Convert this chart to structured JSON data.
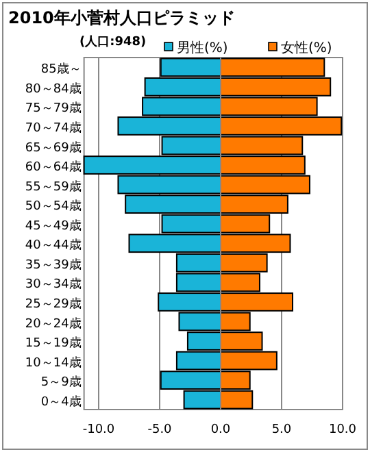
{
  "chart_data": {
    "type": "bar",
    "orientation": "horizontal",
    "title": "2010年小菅村人口ピラミッド",
    "subtitle": "(人口:948)",
    "categories": [
      "85歳～",
      "80～84歳",
      "75～79歳",
      "70～74歳",
      "65～69歳",
      "60～64歳",
      "55～59歳",
      "50～54歳",
      "45～49歳",
      "40～44歳",
      "35～39歳",
      "30～34歳",
      "25～29歳",
      "20～24歳",
      "15～19歳",
      "10～14歳",
      "5～9歳",
      "0～4歳"
    ],
    "series": [
      {
        "name": "男性(%)",
        "color": "#1ab4d8",
        "values": [
          -4.9,
          -6.2,
          -6.4,
          -8.4,
          -4.8,
          -11.2,
          -8.4,
          -7.8,
          -4.8,
          -7.5,
          -3.6,
          -3.6,
          -5.1,
          -3.4,
          -2.7,
          -3.6,
          -4.9,
          -3.0
        ]
      },
      {
        "name": "女性(%)",
        "color": "#ff7a00",
        "values": [
          8.5,
          9.0,
          7.9,
          9.9,
          6.7,
          6.9,
          7.3,
          5.5,
          4.0,
          5.7,
          3.8,
          3.2,
          5.9,
          2.4,
          3.4,
          4.6,
          2.4,
          2.6
        ]
      }
    ],
    "xlim": [
      -11.2,
      10
    ],
    "stacked": true,
    "xticks": [
      {
        "value": -10,
        "label": "-10.0"
      },
      {
        "value": -5,
        "label": "-5.0"
      },
      {
        "value": 0,
        "label": "0.0"
      },
      {
        "value": 5,
        "label": "5.0"
      },
      {
        "value": 10,
        "label": "10.0"
      }
    ],
    "grid": "x",
    "legend": "top"
  }
}
